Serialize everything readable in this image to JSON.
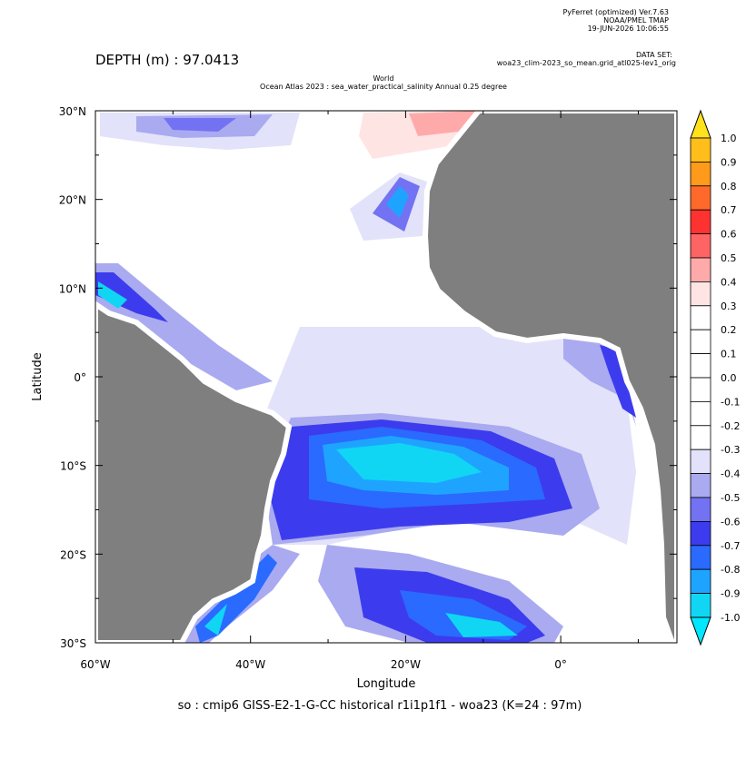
{
  "header": {
    "software": "PyFerret (optimized) Ver.7.63",
    "lab": "NOAA/PMEL TMAP",
    "date": "19-JUN-2026 10:06:55",
    "dataset_label": "DATA SET:",
    "dataset": "woa23_clim-2023_so_mean.grid_atl025-lev1_orig",
    "depth": "DEPTH (m) : 97.0413",
    "title_line1": "World",
    "title_line2": "Ocean Atlas 2023 : sea_water_practical_salinity Annual  0.25 degree"
  },
  "axes": {
    "y_label": "Latitude",
    "x_label": "Longitude",
    "lat_ticks": [
      "30°N",
      "20°N",
      "10°N",
      "0°",
      "10°S",
      "20°S",
      "30°S"
    ],
    "lon_ticks": [
      "60°W",
      "40°W",
      "20°W",
      "0°"
    ]
  },
  "caption": "so : cmip6 GISS-E2-1-G-CC historical r1i1p1f1 - woa23  (K=24 : 97m)",
  "colorbar": {
    "levels": [
      "1.0",
      "0.9",
      "0.8",
      "0.7",
      "0.6",
      "0.5",
      "0.4",
      "0.3",
      "0.2",
      "0.1",
      "0.0",
      "-0.1",
      "-0.2",
      "-0.3",
      "-0.4",
      "-0.5",
      "-0.6",
      "-0.7",
      "-0.8",
      "-0.9",
      "-1.0"
    ],
    "colors": [
      "#ffe21c",
      "#ffbe1a",
      "#ff9a1a",
      "#ff6a2a",
      "#ff3232",
      "#ff6464",
      "#ffaaaa",
      "#ffe4e4",
      "#ffffff",
      "#ffffff",
      "#ffffff",
      "#ffffff",
      "#ffffff",
      "#ffffff",
      "#e2e2fa",
      "#aaaaf0",
      "#7272f2",
      "#3c3cee",
      "#2a6aff",
      "#1ea4ff",
      "#10d6f4",
      "#00e8ff"
    ]
  }
}
